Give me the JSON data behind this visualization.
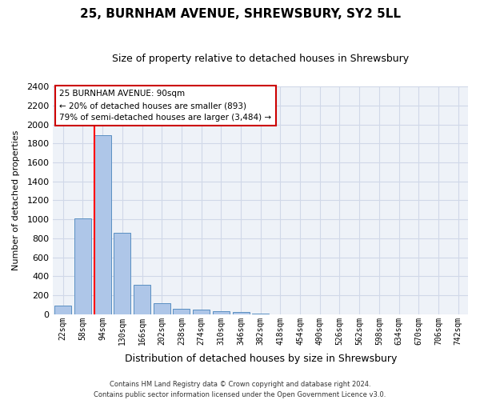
{
  "title": "25, BURNHAM AVENUE, SHREWSBURY, SY2 5LL",
  "subtitle": "Size of property relative to detached houses in Shrewsbury",
  "xlabel": "Distribution of detached houses by size in Shrewsbury",
  "ylabel": "Number of detached properties",
  "footer_line1": "Contains HM Land Registry data © Crown copyright and database right 2024.",
  "footer_line2": "Contains public sector information licensed under the Open Government Licence v3.0.",
  "bar_labels": [
    "22sqm",
    "58sqm",
    "94sqm",
    "130sqm",
    "166sqm",
    "202sqm",
    "238sqm",
    "274sqm",
    "310sqm",
    "346sqm",
    "382sqm",
    "418sqm",
    "454sqm",
    "490sqm",
    "526sqm",
    "562sqm",
    "598sqm",
    "634sqm",
    "670sqm",
    "706sqm",
    "742sqm"
  ],
  "bar_values": [
    95,
    1010,
    1890,
    860,
    310,
    115,
    60,
    50,
    35,
    20,
    5,
    0,
    0,
    0,
    0,
    0,
    0,
    0,
    0,
    0,
    0
  ],
  "bar_color": "#aec6e8",
  "bar_edge_color": "#5a8fc2",
  "grid_color": "#d0d8e8",
  "background_color": "#eef2f8",
  "annotation_line1": "25 BURNHAM AVENUE: 90sqm",
  "annotation_line2": "← 20% of detached houses are smaller (893)",
  "annotation_line3": "79% of semi-detached houses are larger (3,484) →",
  "annotation_box_color": "#ffffff",
  "annotation_box_edge": "#cc0000",
  "ylim": [
    0,
    2400
  ],
  "yticks": [
    0,
    200,
    400,
    600,
    800,
    1000,
    1200,
    1400,
    1600,
    1800,
    2000,
    2200,
    2400
  ]
}
